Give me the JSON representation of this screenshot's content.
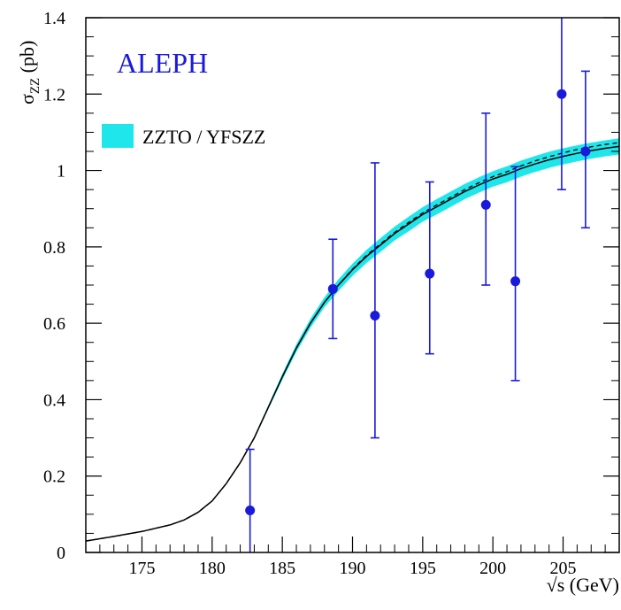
{
  "chart_data": {
    "type": "scatter",
    "experiment_label": "ALEPH",
    "xlabel": "√s (GeV)",
    "ylabel_main": "σ",
    "ylabel_sub": "ZZ",
    "ylabel_unit": " (pb)",
    "xlim": [
      171,
      209
    ],
    "ylim": [
      0,
      1.4
    ],
    "xticks": [
      175,
      180,
      185,
      190,
      195,
      200,
      205
    ],
    "yticks": [
      0,
      0.2,
      0.4,
      0.6,
      0.8,
      1.0,
      1.2,
      1.4
    ],
    "ytick_labels": [
      "0",
      "0.2",
      "0.4",
      "0.6",
      "0.8",
      "1",
      "1.2",
      "1.4"
    ],
    "legend": {
      "label": "ZZTO / YFSZZ",
      "placement": "top-left"
    },
    "measurements": {
      "x": [
        182.7,
        188.6,
        191.6,
        195.5,
        199.5,
        201.6,
        204.9,
        206.6
      ],
      "y": [
        0.11,
        0.69,
        0.62,
        0.73,
        0.91,
        0.71,
        1.2,
        1.05
      ],
      "y_low": [
        0.0,
        0.56,
        0.3,
        0.52,
        0.7,
        0.45,
        0.95,
        0.85
      ],
      "y_high": [
        0.27,
        0.82,
        1.02,
        0.97,
        1.15,
        1.01,
        1.4,
        1.26
      ]
    },
    "prediction": {
      "x": [
        171,
        173,
        175,
        177,
        178,
        179,
        180,
        181,
        182,
        183,
        184,
        185,
        186,
        187,
        188,
        189,
        190,
        191,
        192,
        193,
        194,
        195,
        196,
        197,
        198,
        199,
        200,
        201,
        202,
        203,
        204,
        205,
        206,
        207,
        208,
        209
      ],
      "y": [
        0.03,
        0.042,
        0.055,
        0.072,
        0.085,
        0.105,
        0.135,
        0.18,
        0.235,
        0.3,
        0.38,
        0.46,
        0.535,
        0.6,
        0.655,
        0.7,
        0.74,
        0.775,
        0.805,
        0.835,
        0.86,
        0.885,
        0.905,
        0.925,
        0.945,
        0.962,
        0.978,
        0.99,
        1.005,
        1.017,
        1.028,
        1.037,
        1.045,
        1.052,
        1.058,
        1.063
      ],
      "y_alt": [
        0.03,
        0.042,
        0.055,
        0.072,
        0.085,
        0.105,
        0.135,
        0.18,
        0.235,
        0.3,
        0.38,
        0.46,
        0.535,
        0.6,
        0.655,
        0.7,
        0.742,
        0.778,
        0.808,
        0.838,
        0.864,
        0.889,
        0.91,
        0.93,
        0.95,
        0.968,
        0.984,
        0.997,
        1.012,
        1.025,
        1.036,
        1.046,
        1.055,
        1.062,
        1.068,
        1.073
      ],
      "band_half_width": [
        0,
        0,
        0,
        0,
        0,
        0,
        0,
        0,
        0,
        0.003,
        0.005,
        0.008,
        0.01,
        0.012,
        0.013,
        0.015,
        0.016,
        0.017,
        0.018,
        0.018,
        0.019,
        0.019,
        0.02,
        0.02,
        0.02,
        0.02,
        0.02,
        0.021,
        0.021,
        0.021,
        0.021,
        0.021,
        0.021,
        0.021,
        0.021,
        0.021
      ]
    },
    "colors": {
      "data": "#1a1adb",
      "band": "#1ee6ea",
      "line": "#000000",
      "brand": "#1a1adb"
    }
  }
}
